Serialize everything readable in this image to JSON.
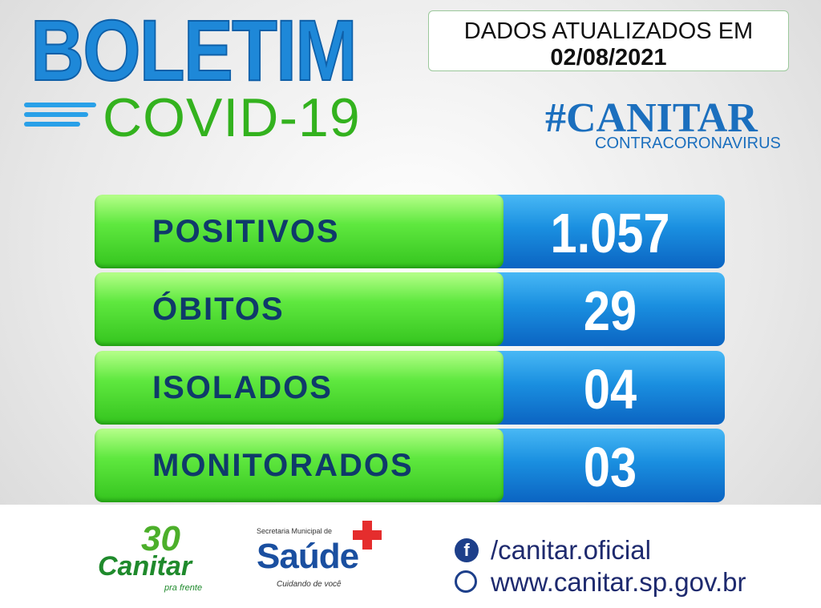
{
  "header": {
    "title": "BOLETIM",
    "subtitle": "COVID-19",
    "update_label": "DADOS ATUALIZADOS EM",
    "update_date": "02/08/2021",
    "hashtag": "#CANITAR",
    "hashtag_sub": "CONTRACORONAVIRUS"
  },
  "table": {
    "rows": [
      [
        "POSITIVOS",
        "1.057"
      ],
      [
        "ÓBITOS",
        "29"
      ],
      [
        "ISOLADOS",
        "04"
      ],
      [
        "MONITORADOS",
        "03"
      ]
    ]
  },
  "footer": {
    "logo_city": {
      "number": "30",
      "name": "Canitar",
      "slogan": "pra frente"
    },
    "logo_health": {
      "top": "Secretaria Municipal de",
      "name": "Saúde",
      "slogan": "Cuidando de você"
    },
    "facebook": "/canitar.oficial",
    "website": "www.canitar.sp.gov.br"
  }
}
